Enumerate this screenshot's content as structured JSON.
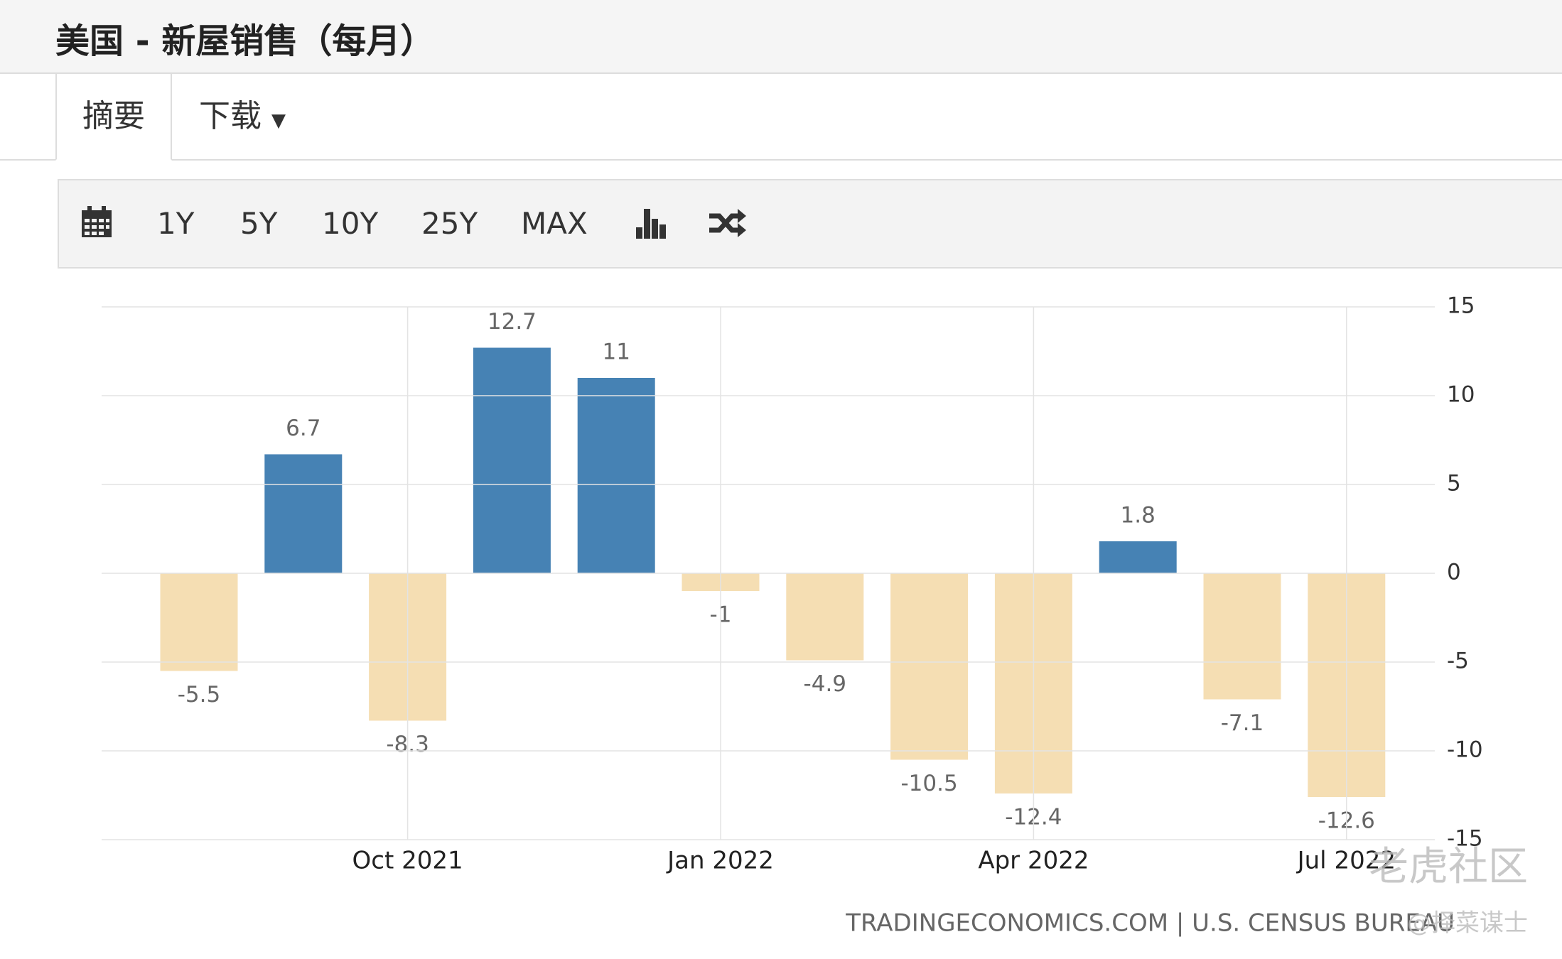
{
  "header": {
    "title": "美国 - 新屋销售（每月）"
  },
  "tabs": [
    "摘要",
    "下载"
  ],
  "toolbar": [
    "1Y",
    "5Y",
    "10Y",
    "25Y",
    "MAX"
  ],
  "chart_data": {
    "type": "bar",
    "categories": [
      null,
      null,
      "Oct 2021",
      null,
      null,
      "Jan 2022",
      null,
      null,
      "Apr 2022",
      null,
      null,
      "Jul 2022"
    ],
    "values": [
      -5.5,
      6.7,
      -8.3,
      12.7,
      11,
      -1,
      -4.9,
      -10.5,
      -12.4,
      1.8,
      -7.1,
      -12.6
    ],
    "colors": {
      "positive": "#4682b4",
      "negative": "#f5deb3"
    },
    "ylim": [
      -15,
      15
    ],
    "yticks": [
      15,
      10,
      5,
      0,
      -5,
      -10,
      -15
    ],
    "grid": true,
    "source": "TRADINGECONOMICS.COM | U.S. CENSUS BUREAU"
  },
  "watermark": {
    "logo": "老虎社区",
    "author": "@择菜谋士"
  }
}
